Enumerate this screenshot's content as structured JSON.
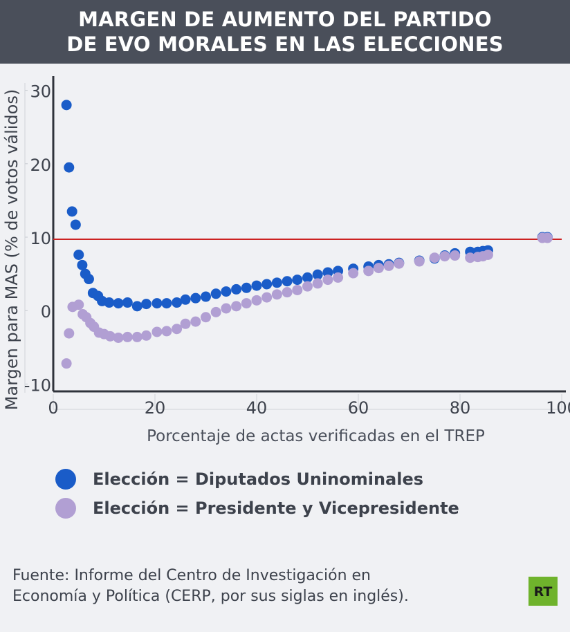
{
  "header": {
    "title_line1": "MARGEN DE AUMENTO DEL PARTIDO",
    "title_line2": "DE EVO MORALES EN LAS ELECCIONES"
  },
  "colors": {
    "header_bg": "#4a4f5a",
    "series_diputados": "#1a5cc8",
    "series_presidente": "#b19fd3",
    "reference_line": "#cc2222",
    "logo_bg": "#6fb32c"
  },
  "chart_data": {
    "type": "scatter",
    "xlabel": "Porcentaje de actas verificadas en el TREP",
    "ylabel": "Margen para MAS (% de votos válidos)",
    "xlim": [
      0,
      100
    ],
    "ylim": [
      -11,
      31
    ],
    "xticks": [
      0,
      20,
      40,
      60,
      80,
      100
    ],
    "yticks": [
      -10,
      0,
      10,
      20,
      30
    ],
    "reference_line_y": 10,
    "series": [
      {
        "name": "Elección = Diputados Uninominales",
        "color": "#1a5cc8",
        "points": [
          [
            2.6,
            28.0
          ],
          [
            3.1,
            19.5
          ],
          [
            3.7,
            13.5
          ],
          [
            4.4,
            11.7
          ],
          [
            5.0,
            7.6
          ],
          [
            5.7,
            6.2
          ],
          [
            6.3,
            5.0
          ],
          [
            7.0,
            4.3
          ],
          [
            7.8,
            2.4
          ],
          [
            8.8,
            2.0
          ],
          [
            9.6,
            1.3
          ],
          [
            11.0,
            1.1
          ],
          [
            12.8,
            1.0
          ],
          [
            14.6,
            1.1
          ],
          [
            16.5,
            0.6
          ],
          [
            18.3,
            0.9
          ],
          [
            20.4,
            1.0
          ],
          [
            22.3,
            1.0
          ],
          [
            24.3,
            1.1
          ],
          [
            26.0,
            1.5
          ],
          [
            28.0,
            1.7
          ],
          [
            30.0,
            1.9
          ],
          [
            32.0,
            2.3
          ],
          [
            34.0,
            2.6
          ],
          [
            36.0,
            2.9
          ],
          [
            38.0,
            3.1
          ],
          [
            40.0,
            3.4
          ],
          [
            42.0,
            3.6
          ],
          [
            44.0,
            3.8
          ],
          [
            46.0,
            4.0
          ],
          [
            48.0,
            4.2
          ],
          [
            50.0,
            4.5
          ],
          [
            52.0,
            4.9
          ],
          [
            54.0,
            5.2
          ],
          [
            56.0,
            5.4
          ],
          [
            59.0,
            5.7
          ],
          [
            62.0,
            6.0
          ],
          [
            64.0,
            6.2
          ],
          [
            66.0,
            6.3
          ],
          [
            68.0,
            6.5
          ],
          [
            72.0,
            6.8
          ],
          [
            75.0,
            7.1
          ],
          [
            77.0,
            7.5
          ],
          [
            79.0,
            7.8
          ],
          [
            82.0,
            8.0
          ],
          [
            83.5,
            8.0
          ],
          [
            84.5,
            8.1
          ],
          [
            85.5,
            8.2
          ],
          [
            96.2,
            10.0
          ],
          [
            97.2,
            10.0
          ]
        ]
      },
      {
        "name": "Elección = Presidente y Vicepresidente",
        "color": "#b19fd3",
        "points": [
          [
            2.6,
            -7.2
          ],
          [
            3.1,
            -3.1
          ],
          [
            3.8,
            0.5
          ],
          [
            5.0,
            0.8
          ],
          [
            5.8,
            -0.5
          ],
          [
            6.5,
            -0.9
          ],
          [
            7.3,
            -1.7
          ],
          [
            8.0,
            -2.2
          ],
          [
            9.0,
            -3.0
          ],
          [
            10.0,
            -3.2
          ],
          [
            11.2,
            -3.5
          ],
          [
            12.8,
            -3.7
          ],
          [
            14.6,
            -3.6
          ],
          [
            16.5,
            -3.6
          ],
          [
            18.3,
            -3.4
          ],
          [
            20.4,
            -2.9
          ],
          [
            22.3,
            -2.8
          ],
          [
            24.3,
            -2.5
          ],
          [
            26.0,
            -1.8
          ],
          [
            28.0,
            -1.5
          ],
          [
            30.0,
            -0.9
          ],
          [
            32.0,
            -0.2
          ],
          [
            34.0,
            0.3
          ],
          [
            36.0,
            0.6
          ],
          [
            38.0,
            1.0
          ],
          [
            40.0,
            1.4
          ],
          [
            42.0,
            1.8
          ],
          [
            44.0,
            2.2
          ],
          [
            46.0,
            2.5
          ],
          [
            48.0,
            2.8
          ],
          [
            50.0,
            3.3
          ],
          [
            52.0,
            3.7
          ],
          [
            54.0,
            4.2
          ],
          [
            56.0,
            4.5
          ],
          [
            59.0,
            5.1
          ],
          [
            62.0,
            5.4
          ],
          [
            64.0,
            5.8
          ],
          [
            66.0,
            6.1
          ],
          [
            68.0,
            6.4
          ],
          [
            72.0,
            6.7
          ],
          [
            75.0,
            7.2
          ],
          [
            77.0,
            7.4
          ],
          [
            79.0,
            7.5
          ],
          [
            82.0,
            7.2
          ],
          [
            83.5,
            7.3
          ],
          [
            84.5,
            7.4
          ],
          [
            85.5,
            7.6
          ],
          [
            96.2,
            9.9
          ],
          [
            97.2,
            9.9
          ]
        ]
      }
    ]
  },
  "legend": {
    "items": [
      {
        "label": "Elección = Diputados Uninominales"
      },
      {
        "label": "Elección = Presidente y Vicepresidente"
      }
    ]
  },
  "footer": {
    "source_line1": "Fuente: Informe del Centro de Investigación en",
    "source_line2": "Economía y Política (CERP, por sus siglas en inglés)."
  },
  "logo": {
    "text": "RT"
  }
}
